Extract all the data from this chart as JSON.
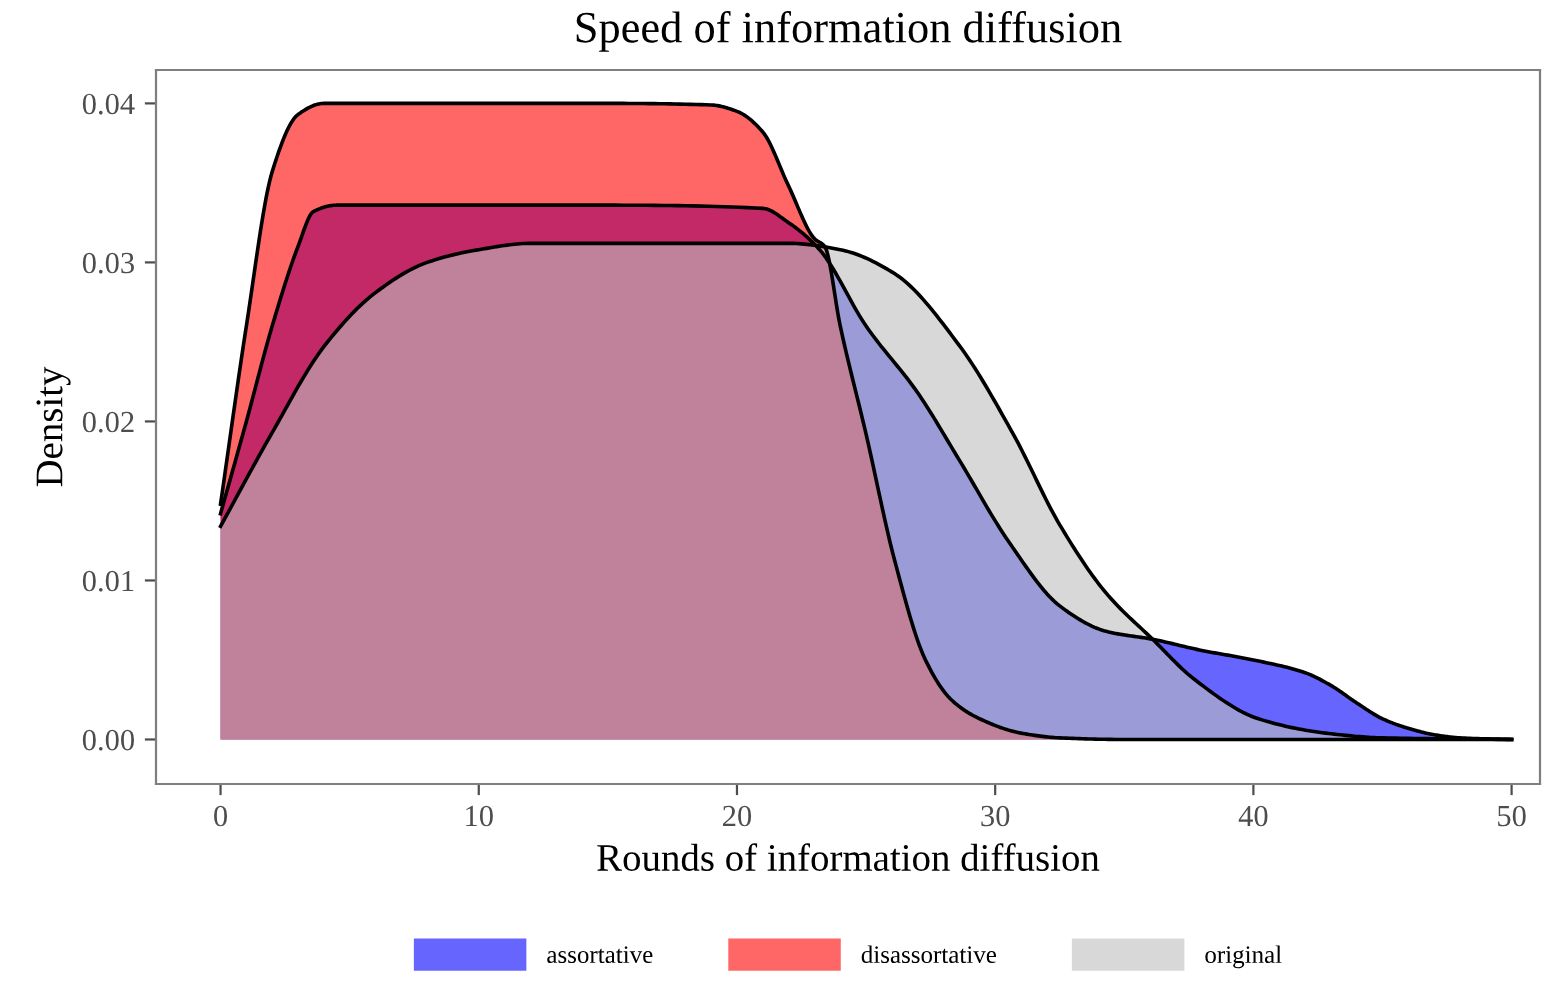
{
  "chart_data": {
    "type": "area",
    "title": "Speed of information diffusion",
    "xlabel": "Rounds of information diffusion",
    "ylabel": "Density",
    "xlim": [
      -2.5,
      51.1
    ],
    "ylim": [
      -0.0028,
      0.0421
    ],
    "xticks": [
      0,
      10,
      20,
      30,
      40,
      50
    ],
    "yticks": [
      {
        "value": 0,
        "label": "0.00"
      },
      {
        "value": 0.01,
        "label": "0.01"
      },
      {
        "value": 0.02,
        "label": "0.02"
      },
      {
        "value": 0.03,
        "label": "0.03"
      },
      {
        "value": 0.04,
        "label": "0.04"
      }
    ],
    "grid": false,
    "legend": "bottom",
    "series": [
      {
        "name": "assortative",
        "color": "#0000ff",
        "x": [
          0,
          1,
          2,
          3,
          3.6,
          4.5,
          10,
          15,
          21,
          22,
          23.2,
          25,
          27,
          28.6,
          30.5,
          32.5,
          34.3,
          36.1,
          38,
          40,
          42,
          43,
          44,
          45,
          46,
          47,
          48,
          50
        ],
        "values": [
          0.0142,
          0.02,
          0.026,
          0.031,
          0.0332,
          0.0336,
          0.0336,
          0.0336,
          0.0334,
          0.0325,
          0.0308,
          0.026,
          0.0218,
          0.0176,
          0.0125,
          0.0084,
          0.0068,
          0.0063,
          0.0056,
          0.005,
          0.0042,
          0.0034,
          0.0023,
          0.0013,
          0.0007,
          0.0003,
          0.0001,
          0
        ]
      },
      {
        "name": "disassortative",
        "color": "#ff0000",
        "x": [
          0,
          1,
          2,
          3,
          4,
          10,
          15,
          19,
          20,
          21,
          22,
          23,
          23.4,
          24,
          25,
          26.1,
          27.3,
          28.3,
          29.4,
          31,
          32.5,
          35,
          40,
          50
        ],
        "values": [
          0.0148,
          0.026,
          0.0357,
          0.0393,
          0.04,
          0.04,
          0.04,
          0.0399,
          0.0395,
          0.0382,
          0.0348,
          0.0315,
          0.031,
          0.026,
          0.0192,
          0.0113,
          0.005,
          0.0025,
          0.0013,
          0.0004,
          0.0001,
          0,
          0,
          0
        ]
      },
      {
        "name": "original",
        "color": "#bebebe",
        "x": [
          0,
          2,
          4,
          6,
          8,
          10,
          12,
          17,
          22,
          24,
          26.1,
          28.6,
          30.7,
          32.5,
          34.3,
          36.1,
          37.7,
          40.2,
          42.8,
          45,
          50
        ],
        "values": [
          0.0134,
          0.0193,
          0.0247,
          0.0281,
          0.03,
          0.0308,
          0.0312,
          0.0312,
          0.0312,
          0.0308,
          0.0293,
          0.0248,
          0.0192,
          0.0135,
          0.0092,
          0.0063,
          0.0038,
          0.0013,
          0.0004,
          0.0001,
          0
        ]
      }
    ]
  }
}
